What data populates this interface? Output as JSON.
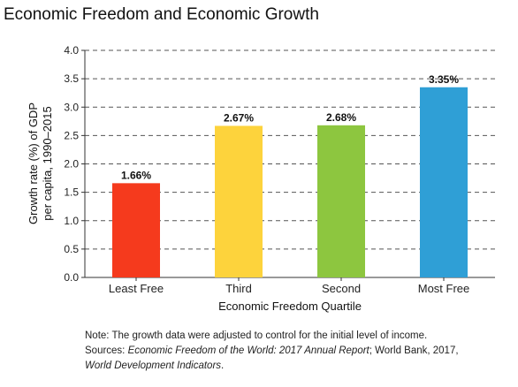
{
  "page": {
    "title": "Economic Freedom and Economic Growth"
  },
  "chart_data": {
    "type": "bar",
    "title": "Economic Freedom and Economic Growth",
    "xlabel": "Economic Freedom Quartile",
    "ylabel_line1": "Growth rate (%) of GDP",
    "ylabel_line2": "per capita, 1990–2015",
    "categories": [
      "Least Free",
      "Third",
      "Second",
      "Most Free"
    ],
    "values": [
      1.66,
      2.67,
      2.68,
      3.35
    ],
    "data_labels": [
      "1.66%",
      "2.67%",
      "2.68%",
      "3.35%"
    ],
    "colors": [
      "#f53a1d",
      "#fdd33c",
      "#8dc63f",
      "#2f9fd6"
    ],
    "ylim": [
      0,
      4
    ],
    "yticks": [
      0,
      0.5,
      1,
      1.5,
      2,
      2.5,
      3,
      3.5,
      4
    ],
    "ytick_labels": [
      "0.0",
      "0.5",
      "1.0",
      "1.5",
      "2.0",
      "2.5",
      "3.0",
      "3.5",
      "4.0"
    ],
    "grid": true,
    "grid_style": "dashed",
    "legend": "none"
  },
  "note": {
    "line1": "Note: The growth data were adjusted to control for the initial level of income.",
    "sources_prefix": "Sources: ",
    "source1": "Economic Freedom of the World: 2017 Annual Report",
    "sources_mid": "; World Bank, 2017,",
    "source2": "World Development Indicators",
    "sources_end": "."
  }
}
